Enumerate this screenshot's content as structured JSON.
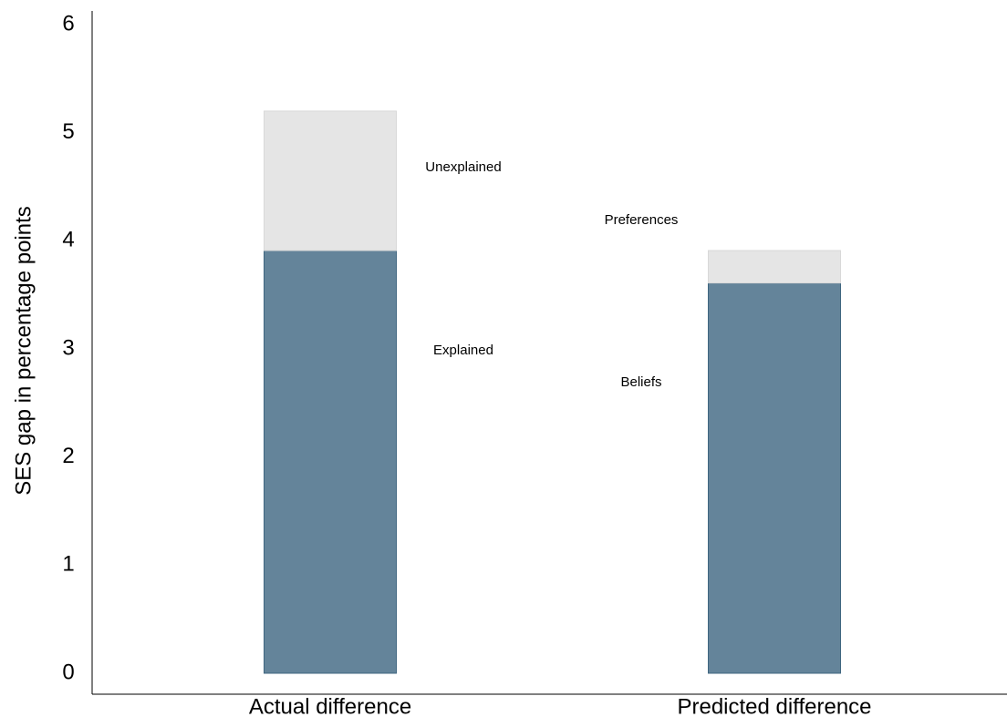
{
  "chart_data": {
    "type": "stacked-bar",
    "y_label": "SES gap in percentage points",
    "categories": [
      "Actual difference",
      "Predicted difference"
    ],
    "series": [
      {
        "color": "#64849a",
        "values": [
          3.91,
          3.61
        ],
        "segment_labels": [
          "Explained",
          "Beliefs"
        ]
      },
      {
        "color": "#e5e5e5",
        "values": [
          1.29,
          0.3
        ],
        "segment_labels": [
          "Unexplained",
          "Preferences"
        ]
      }
    ],
    "ylim": [
      0,
      6
    ],
    "yticks": [
      0,
      1,
      2,
      3,
      4,
      5,
      6
    ],
    "grid": false
  }
}
